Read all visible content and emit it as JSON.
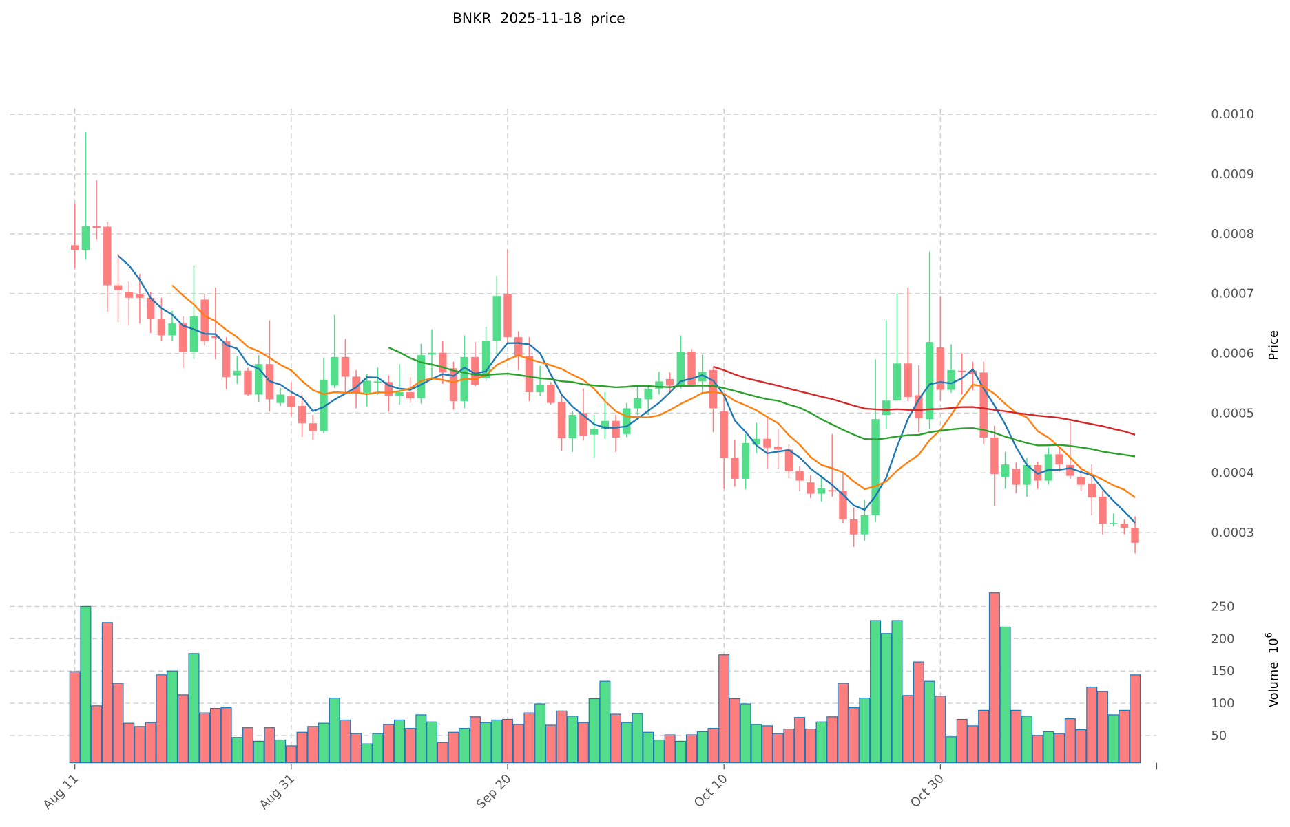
{
  "chart_data": {
    "type": "candlestick",
    "title": "BNKR  2025-11-18  price",
    "ylabel": "Price",
    "volume_ylabel": "Volume  10",
    "volume_ylabel_exp": "6",
    "ylim": [
      0.00026,
      0.00101
    ],
    "volume_ylim": [
      0,
      260
    ],
    "grid": true,
    "x_tick_labels": [
      {
        "label": "Aug 11",
        "index": 0
      },
      {
        "label": "Aug 31",
        "index": 20
      },
      {
        "label": "Sep 20",
        "index": 40
      },
      {
        "label": "Oct 10",
        "index": 60
      },
      {
        "label": "Oct 30",
        "index": 80
      }
    ],
    "y_ticks": [
      "0.0003",
      "0.0004",
      "0.0005",
      "0.0006",
      "0.0007",
      "0.0008",
      "0.0009",
      "0.0010"
    ],
    "volume_ticks": [
      "50",
      "100",
      "150",
      "200",
      "250"
    ],
    "colors": {
      "up": "#53dd8b",
      "down": "#fd7e7f",
      "volume_edge": "#1f77b4",
      "grid": "#cfcfcf"
    },
    "moving_averages": [
      {
        "period": 5,
        "color": "#1f77b4"
      },
      {
        "period": 10,
        "color": "#ff7f0e"
      },
      {
        "period": 30,
        "color": "#2ca02c"
      },
      {
        "period": 60,
        "color": "#d62728"
      }
    ],
    "ohlc": [
      [
        0.000781,
        0.000851,
        0.000743,
        0.000773
      ],
      [
        0.000773,
        0.00097,
        0.000757,
        0.000813
      ],
      [
        0.000813,
        0.00089,
        0.00079,
        0.00081
      ],
      [
        0.000812,
        0.00082,
        0.00067,
        0.000714
      ],
      [
        0.000714,
        0.000766,
        0.000652,
        0.000706
      ],
      [
        0.000703,
        0.00072,
        0.000647,
        0.000693
      ],
      [
        0.000699,
        0.000733,
        0.00065,
        0.000693
      ],
      [
        0.000693,
        0.000703,
        0.000634,
        0.000657
      ],
      [
        0.000657,
        0.000693,
        0.00062,
        0.00063
      ],
      [
        0.00063,
        0.000671,
        0.00062,
        0.00065
      ],
      [
        0.00065,
        0.000662,
        0.000575,
        0.000602
      ],
      [
        0.000602,
        0.000747,
        0.00059,
        0.000662
      ],
      [
        0.00069,
        0.0007,
        0.000613,
        0.00062
      ],
      [
        0.000629,
        0.00071,
        0.00059,
        0.000626
      ],
      [
        0.00062,
        0.000627,
        0.00054,
        0.00056
      ],
      [
        0.000563,
        0.000596,
        0.000549,
        0.000571
      ],
      [
        0.000571,
        0.000576,
        0.000528,
        0.000531
      ],
      [
        0.000531,
        0.000597,
        0.000519,
        0.000582
      ],
      [
        0.000582,
        0.000655,
        0.000503,
        0.000523
      ],
      [
        0.000517,
        0.000542,
        0.000512,
        0.000531
      ],
      [
        0.000528,
        0.000552,
        0.000494,
        0.00051
      ],
      [
        0.000512,
        0.000531,
        0.00046,
        0.000483
      ],
      [
        0.000483,
        0.000497,
        0.000455,
        0.00047
      ],
      [
        0.00047,
        0.000593,
        0.000466,
        0.000556
      ],
      [
        0.000546,
        0.000664,
        0.000542,
        0.000594
      ],
      [
        0.000594,
        0.000624,
        0.000531,
        0.000561
      ],
      [
        0.000561,
        0.000572,
        0.000508,
        0.000535
      ],
      [
        0.000534,
        0.000565,
        0.000511,
        0.000554
      ],
      [
        0.000552,
        0.000576,
        0.000531,
        0.000553
      ],
      [
        0.000552,
        0.000563,
        0.000503,
        0.000528
      ],
      [
        0.000528,
        0.000582,
        0.000514,
        0.000535
      ],
      [
        0.000535,
        0.00056,
        0.000517,
        0.000525
      ],
      [
        0.000525,
        0.000616,
        0.000516,
        0.000597
      ],
      [
        0.000598,
        0.00064,
        0.000558,
        0.000601
      ],
      [
        0.000601,
        0.00062,
        0.000549,
        0.000568
      ],
      [
        0.000575,
        0.000586,
        0.000506,
        0.00052
      ],
      [
        0.00052,
        0.00063,
        0.000508,
        0.000594
      ],
      [
        0.000594,
        0.000619,
        0.000545,
        0.000547
      ],
      [
        0.000558,
        0.000644,
        0.000554,
        0.000621
      ],
      [
        0.000621,
        0.00073,
        0.000597,
        0.000696
      ],
      [
        0.000699,
        0.000774,
        0.000616,
        0.000627
      ],
      [
        0.000627,
        0.000637,
        0.000572,
        0.000596
      ],
      [
        0.000596,
        0.000627,
        0.00052,
        0.000535
      ],
      [
        0.000535,
        0.000579,
        0.000528,
        0.000547
      ],
      [
        0.000547,
        0.000552,
        0.000514,
        0.000517
      ],
      [
        0.000519,
        0.000531,
        0.000437,
        0.000458
      ],
      [
        0.000458,
        0.000503,
        0.000435,
        0.000497
      ],
      [
        0.0005,
        0.000541,
        0.000454,
        0.000462
      ],
      [
        0.000464,
        0.000497,
        0.000426,
        0.000473
      ],
      [
        0.000473,
        0.000535,
        0.000457,
        0.000487
      ],
      [
        0.000487,
        0.000497,
        0.000435,
        0.000459
      ],
      [
        0.000465,
        0.000517,
        0.00046,
        0.000508
      ],
      [
        0.000508,
        0.000545,
        0.000497,
        0.000525
      ],
      [
        0.000523,
        0.000547,
        0.000497,
        0.000541
      ],
      [
        0.000541,
        0.000569,
        0.000531,
        0.000553
      ],
      [
        0.000557,
        0.000568,
        0.000535,
        0.000546
      ],
      [
        0.000546,
        0.00063,
        0.000541,
        0.000602
      ],
      [
        0.000602,
        0.000607,
        0.000545,
        0.000547
      ],
      [
        0.000553,
        0.000598,
        0.000532,
        0.000569
      ],
      [
        0.000572,
        0.000576,
        0.000468,
        0.000508
      ],
      [
        0.000503,
        0.000531,
        0.000373,
        0.000425
      ],
      [
        0.000425,
        0.000455,
        0.000377,
        0.00039
      ],
      [
        0.00039,
        0.000465,
        0.000373,
        0.00045
      ],
      [
        0.000447,
        0.000484,
        0.000433,
        0.000457
      ],
      [
        0.000457,
        0.000492,
        0.000407,
        0.000442
      ],
      [
        0.000444,
        0.000473,
        0.000407,
        0.000439
      ],
      [
        0.000439,
        0.000448,
        0.000391,
        0.000403
      ],
      [
        0.000403,
        0.000411,
        0.000369,
        0.000387
      ],
      [
        0.000384,
        0.000396,
        0.000358,
        0.000365
      ],
      [
        0.000365,
        0.000396,
        0.000352,
        0.000374
      ],
      [
        0.000371,
        0.000465,
        0.00036,
        0.000369
      ],
      [
        0.00037,
        0.000399,
        0.000316,
        0.000322
      ],
      [
        0.000322,
        0.000342,
        0.000276,
        0.000297
      ],
      [
        0.000297,
        0.000355,
        0.000286,
        0.000329
      ],
      [
        0.000329,
        0.00059,
        0.000318,
        0.00049
      ],
      [
        0.000497,
        0.000655,
        0.000473,
        0.000521
      ],
      [
        0.000521,
        0.0007,
        0.000524,
        0.000583
      ],
      [
        0.000583,
        0.00071,
        0.00052,
        0.000527
      ],
      [
        0.00053,
        0.00058,
        0.000468,
        0.000491
      ],
      [
        0.00049,
        0.00077,
        0.000473,
        0.000619
      ],
      [
        0.00061,
        0.000696,
        0.00052,
        0.000539
      ],
      [
        0.000539,
        0.000615,
        0.000534,
        0.000572
      ],
      [
        0.000571,
        0.0006,
        0.000531,
        0.00057
      ],
      [
        0.000571,
        0.000586,
        0.000538,
        0.000565
      ],
      [
        0.000568,
        0.000586,
        0.000448,
        0.000459
      ],
      [
        0.000459,
        0.000479,
        0.000345,
        0.000398
      ],
      [
        0.000393,
        0.000435,
        0.000373,
        0.000414
      ],
      [
        0.000407,
        0.000417,
        0.000366,
        0.00038
      ],
      [
        0.00038,
        0.000425,
        0.00036,
        0.000413
      ],
      [
        0.000413,
        0.000418,
        0.000373,
        0.000387
      ],
      [
        0.000387,
        0.000442,
        0.00038,
        0.000431
      ],
      [
        0.000431,
        0.000442,
        0.000402,
        0.000414
      ],
      [
        0.000413,
        0.000486,
        0.00039,
        0.000395
      ],
      [
        0.000393,
        0.00041,
        0.000369,
        0.00038
      ],
      [
        0.000382,
        0.000414,
        0.000329,
        0.000359
      ],
      [
        0.00036,
        0.00037,
        0.000297,
        0.000315
      ],
      [
        0.000315,
        0.000332,
        0.000311,
        0.000316
      ],
      [
        0.000315,
        0.000322,
        0.000297,
        0.000308
      ],
      [
        0.000308,
        0.000327,
        0.000265,
        0.000283
      ]
    ],
    "volume": [
      149,
      250,
      96,
      225,
      131,
      69,
      64,
      70,
      144,
      150,
      113,
      177,
      85,
      92,
      93,
      47,
      62,
      41,
      62,
      43,
      34,
      55,
      64,
      69,
      108,
      74,
      53,
      37,
      53,
      67,
      74,
      61,
      82,
      71,
      39,
      55,
      61,
      79,
      70,
      74,
      75,
      67,
      85,
      99,
      66,
      88,
      80,
      70,
      107,
      134,
      83,
      70,
      84,
      55,
      43,
      51,
      41,
      51,
      56,
      61,
      175,
      107,
      99,
      67,
      65,
      53,
      60,
      78,
      60,
      71,
      79,
      131,
      93,
      108,
      228,
      208,
      228,
      112,
      164,
      134,
      111,
      48,
      75,
      65,
      89,
      271,
      218,
      89,
      80,
      50,
      56,
      53,
      76,
      59,
      125,
      118,
      82,
      89,
      144
    ]
  }
}
